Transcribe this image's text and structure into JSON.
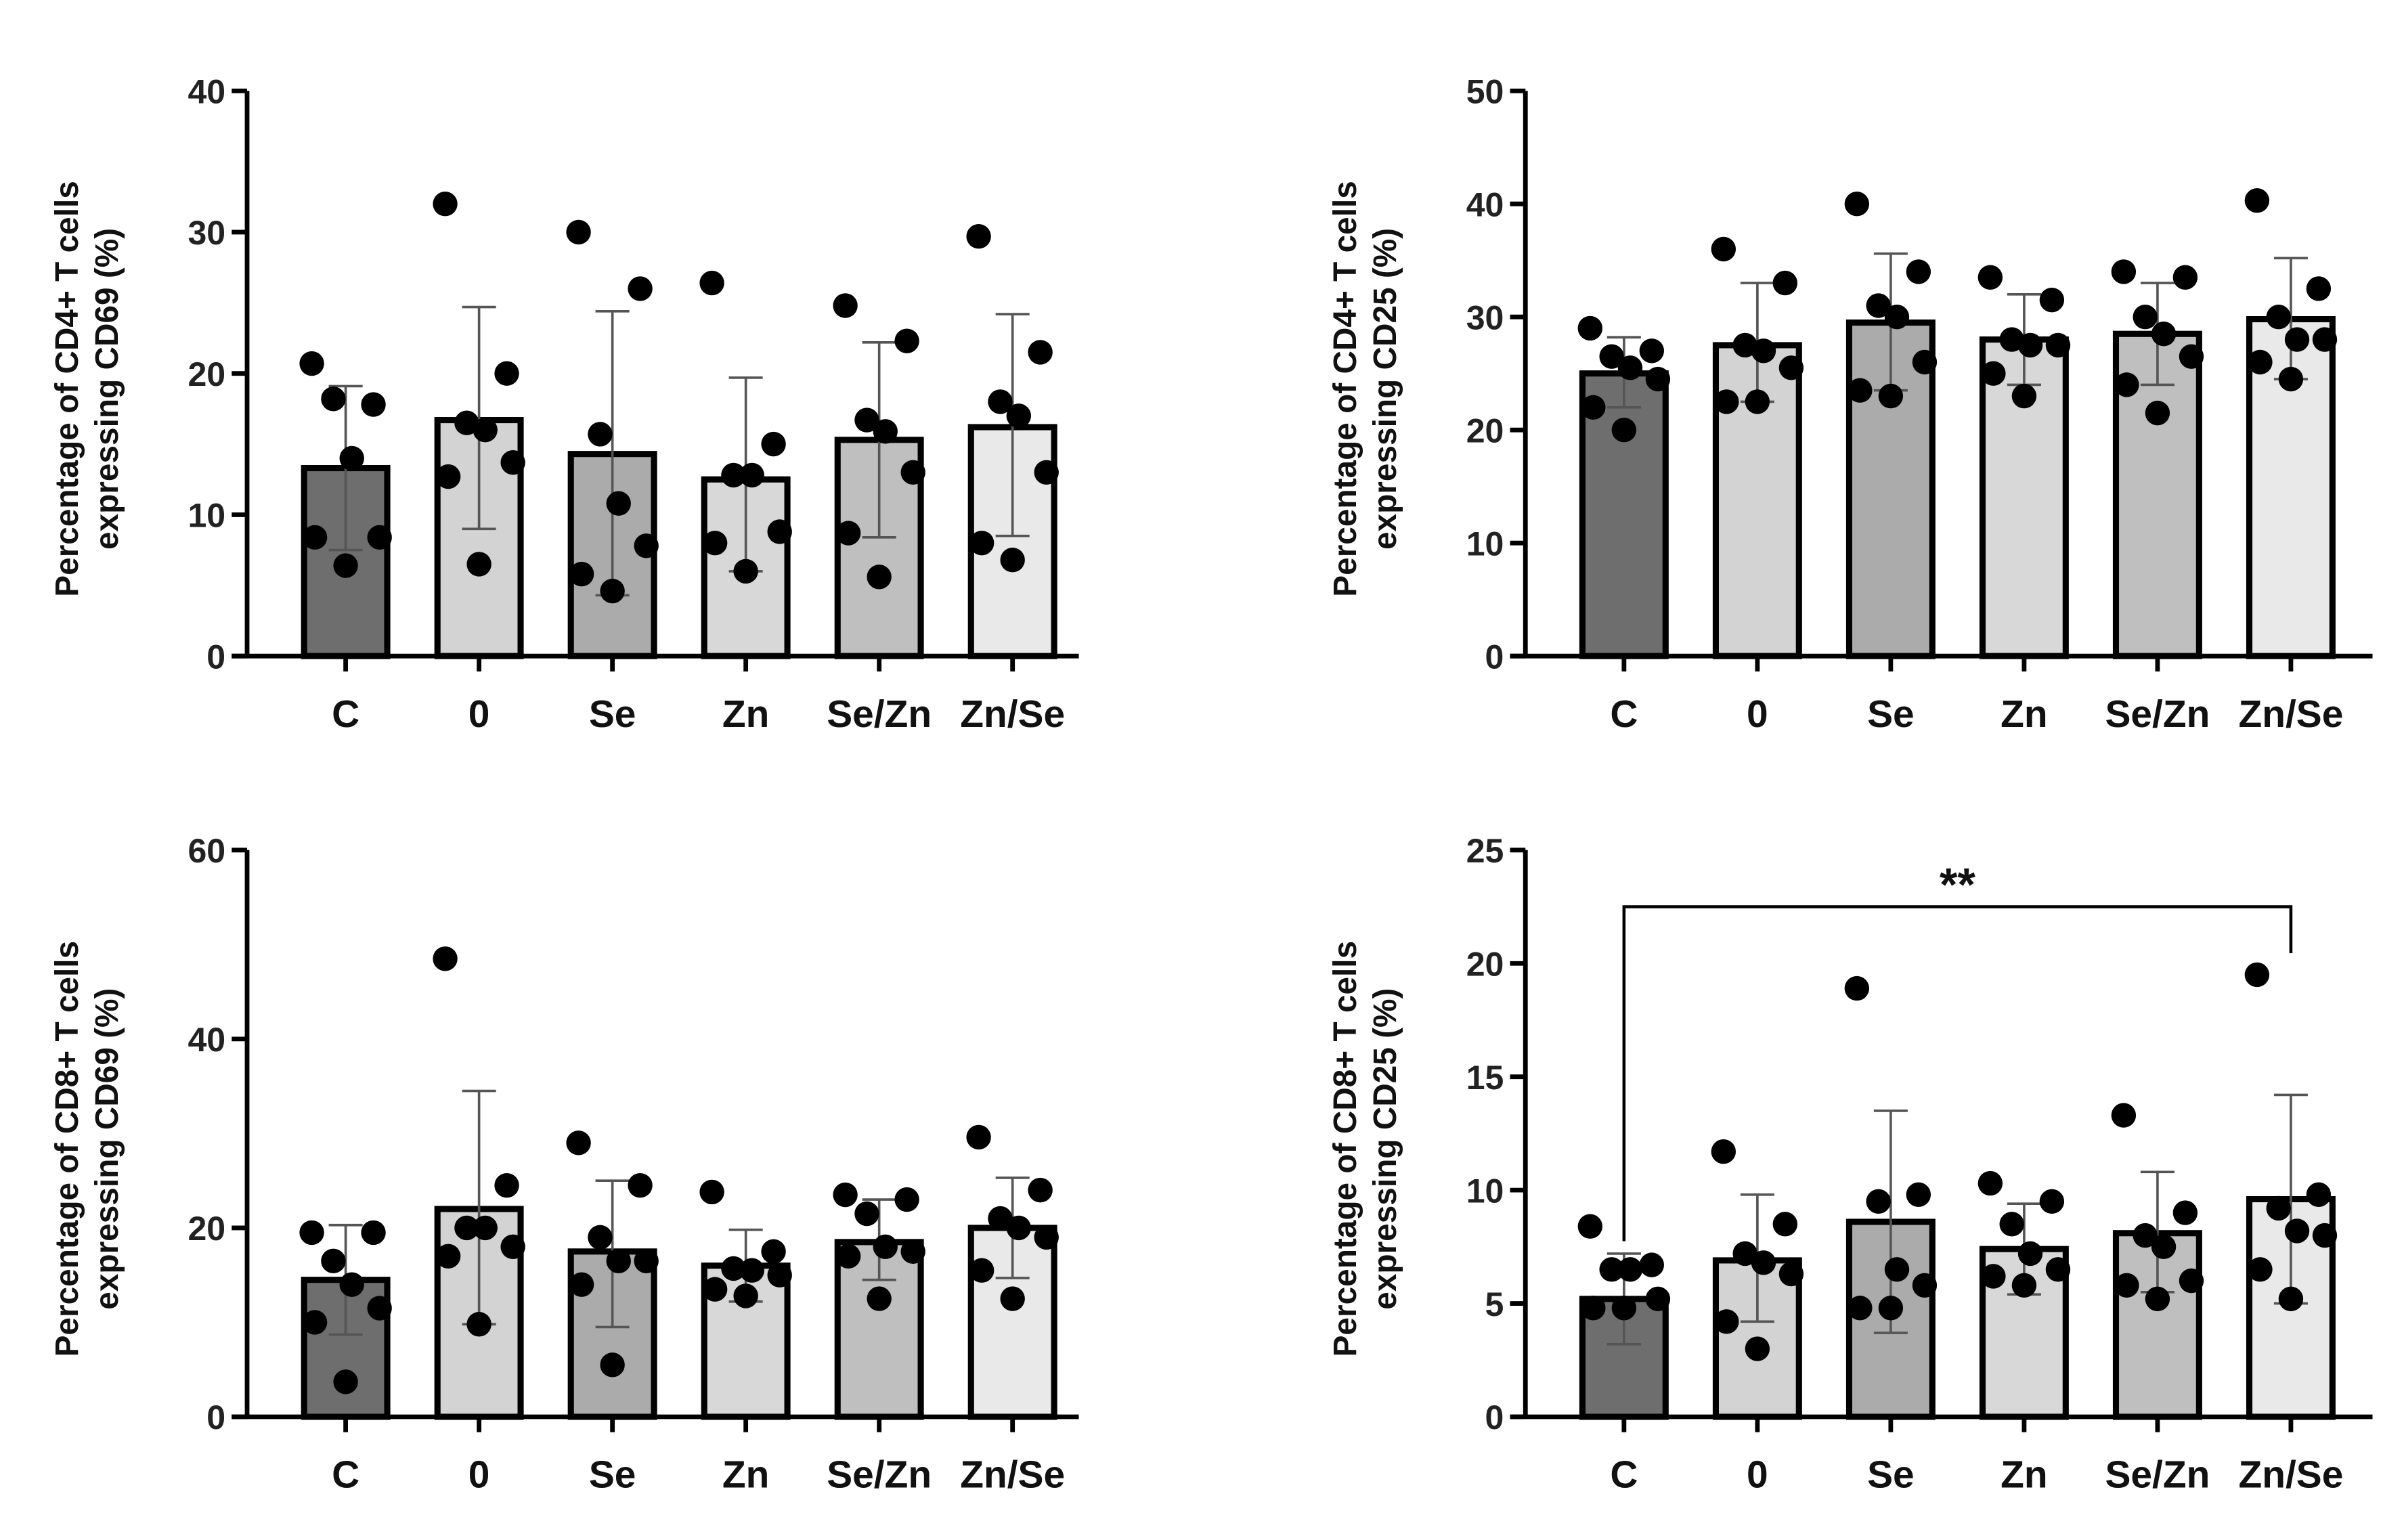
{
  "categories": [
    "C",
    "0",
    "Se",
    "Zn",
    "Se/Zn",
    "Zn/Se"
  ],
  "bar_colors": [
    "#6e6e6e",
    "#d3d3d3",
    "#ababab",
    "#d8d8d8",
    "#bfbfbf",
    "#e9e9e9"
  ],
  "chart_data": [
    {
      "type": "bar",
      "position": "top-left",
      "ylabel": [
        "Percentage of CD4+ T cells",
        "expressing CD69 (%)"
      ],
      "ylim": [
        0,
        40
      ],
      "yticks": [
        0,
        10,
        20,
        30,
        40
      ],
      "means": [
        13.3,
        16.7,
        14.3,
        12.5,
        15.3,
        16.2
      ],
      "error_low": [
        7.5,
        9.0,
        4.3,
        6.0,
        8.4,
        8.5
      ],
      "error_high": [
        19.1,
        24.7,
        24.4,
        19.7,
        22.2,
        24.2
      ],
      "points": [
        [
          20.7,
          17.8,
          18.2,
          14.0,
          8.4,
          8.4,
          6.4
        ],
        [
          32.0,
          20.0,
          16.5,
          16.0,
          13.7,
          12.7,
          6.5
        ],
        [
          30.0,
          26.0,
          15.7,
          10.8,
          7.8,
          5.8,
          4.6
        ],
        [
          26.4,
          15.0,
          12.8,
          12.8,
          8.8,
          8.0,
          6.0
        ],
        [
          24.8,
          22.3,
          16.7,
          15.9,
          13.0,
          8.7,
          5.6
        ],
        [
          29.7,
          21.5,
          18.0,
          17.0,
          13.0,
          8.0,
          6.8
        ]
      ],
      "significance": null
    },
    {
      "type": "bar",
      "position": "top-right",
      "ylabel": [
        "Percentage of CD4+ T cells",
        "expressing CD25 (%)"
      ],
      "ylim": [
        0,
        50
      ],
      "yticks": [
        0,
        10,
        20,
        30,
        40,
        50
      ],
      "means": [
        25.0,
        27.5,
        29.5,
        28.0,
        28.5,
        29.8
      ],
      "error_low": [
        22.0,
        22.5,
        23.5,
        24.0,
        24.0,
        24.5
      ],
      "error_high": [
        28.2,
        33.0,
        35.6,
        32.0,
        33.0,
        35.2
      ],
      "points": [
        [
          29.0,
          27.0,
          26.5,
          25.5,
          24.5,
          22.0,
          20.0
        ],
        [
          36.0,
          33.0,
          27.5,
          27.0,
          25.5,
          22.5,
          22.5
        ],
        [
          40.0,
          34.0,
          31.0,
          30.0,
          26.0,
          23.5,
          23.0
        ],
        [
          33.5,
          31.5,
          28.0,
          27.5,
          27.5,
          25.0,
          23.0
        ],
        [
          34.0,
          33.5,
          30.0,
          28.5,
          26.5,
          24.0,
          21.5
        ],
        [
          40.3,
          32.5,
          30.0,
          28.0,
          28.0,
          26.0,
          24.5
        ]
      ],
      "significance": null
    },
    {
      "type": "bar",
      "position": "bottom-left",
      "ylabel": [
        "Percentage of CD8+ T cells",
        "expressing CD69 (%)"
      ],
      "ylim": [
        0,
        60
      ],
      "yticks": [
        0,
        20,
        40,
        60
      ],
      "means": [
        14.5,
        22.0,
        17.5,
        16.0,
        18.5,
        20.0
      ],
      "error_low": [
        8.7,
        9.8,
        9.5,
        12.2,
        14.5,
        14.7
      ],
      "error_high": [
        20.3,
        34.5,
        25.0,
        19.8,
        23.0,
        25.3
      ],
      "points": [
        [
          19.5,
          19.5,
          16.5,
          14.0,
          11.5,
          10.0,
          3.7
        ],
        [
          48.5,
          24.5,
          20.0,
          20.0,
          18.0,
          17.0,
          9.8
        ],
        [
          29.0,
          24.5,
          19.0,
          16.5,
          16.5,
          14.0,
          5.5
        ],
        [
          23.8,
          17.5,
          15.7,
          15.5,
          15.0,
          13.5,
          12.8
        ],
        [
          23.5,
          23.0,
          21.5,
          18.0,
          17.5,
          17.0,
          12.5
        ],
        [
          29.6,
          24.0,
          21.0,
          20.0,
          19.0,
          15.5,
          12.5
        ]
      ],
      "significance": null
    },
    {
      "type": "bar",
      "position": "bottom-right",
      "ylabel": [
        "Percentage of CD8+ T cells",
        "expressing CD25 (%)"
      ],
      "ylim": [
        0,
        25
      ],
      "yticks": [
        0,
        5,
        10,
        15,
        20,
        25
      ],
      "means": [
        5.2,
        6.9,
        8.6,
        7.4,
        8.1,
        9.6
      ],
      "error_low": [
        3.2,
        4.2,
        3.7,
        5.4,
        5.5,
        5.0
      ],
      "error_high": [
        7.2,
        9.8,
        13.5,
        9.4,
        10.8,
        14.2
      ],
      "points": [
        [
          8.4,
          6.7,
          6.5,
          6.5,
          5.2,
          4.8,
          4.8
        ],
        [
          11.7,
          8.5,
          7.2,
          6.8,
          6.3,
          4.2,
          3.0
        ],
        [
          18.9,
          9.8,
          9.5,
          6.5,
          5.8,
          4.8,
          4.8
        ],
        [
          10.3,
          9.5,
          8.5,
          7.2,
          6.5,
          6.2,
          5.8
        ],
        [
          13.3,
          9.0,
          8.0,
          7.5,
          6.0,
          5.8,
          5.2
        ],
        [
          19.5,
          9.8,
          9.2,
          8.2,
          8.0,
          6.5,
          5.2
        ]
      ],
      "significance": {
        "from": "C",
        "to": "Zn/Se",
        "label": "**",
        "y_value": 22.5
      }
    }
  ]
}
